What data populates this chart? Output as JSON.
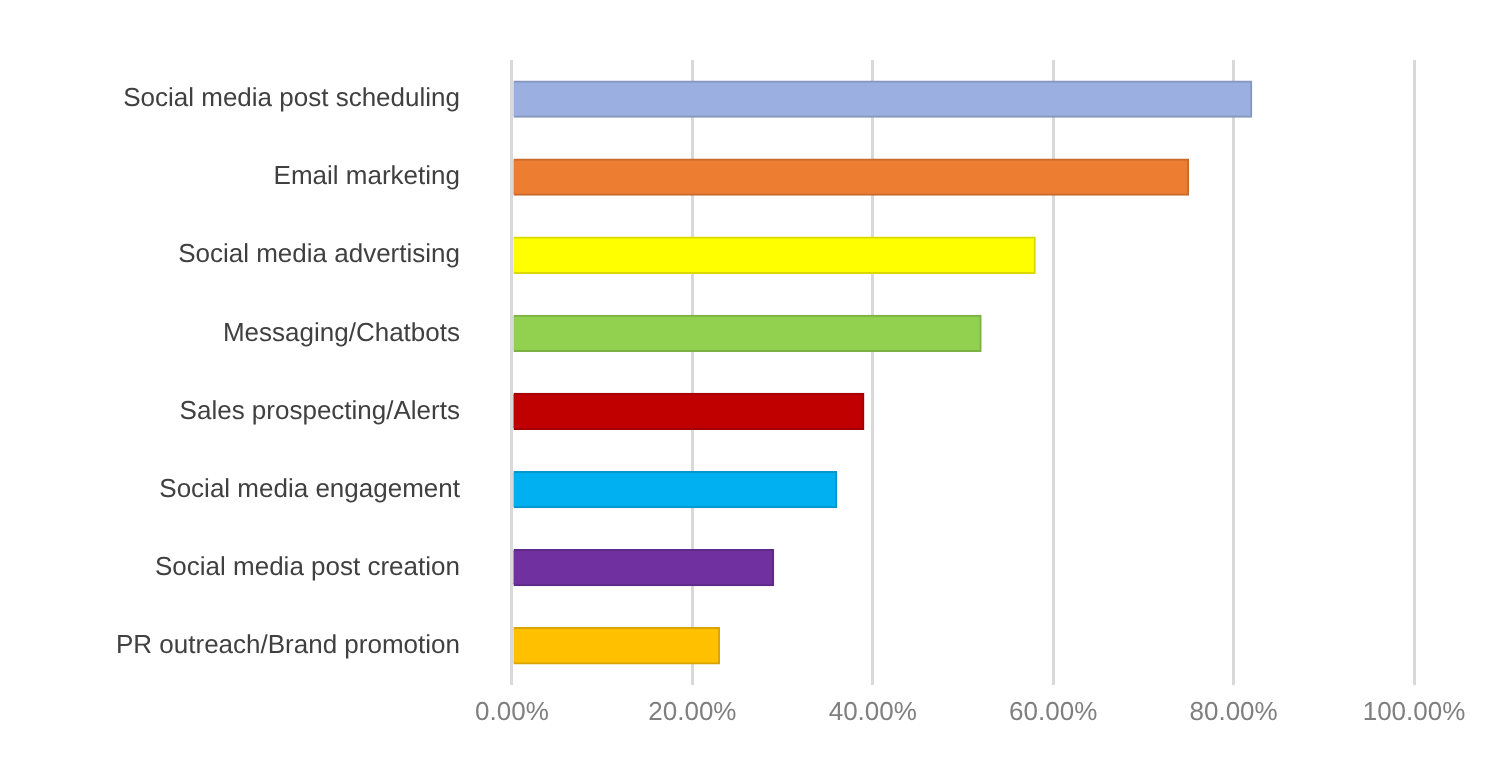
{
  "chart_data": {
    "type": "bar",
    "orientation": "horizontal",
    "categories": [
      "Social media post scheduling",
      "Email marketing",
      "Social media advertising",
      "Messaging/Chatbots",
      "Sales prospecting/Alerts",
      "Social media engagement",
      "Social media post creation",
      "PR outreach/Brand promotion"
    ],
    "values": [
      82,
      75,
      58,
      52,
      39,
      36,
      29,
      23
    ],
    "colors": [
      "#9bb0e0",
      "#ed7d31",
      "#ffff00",
      "#92d050",
      "#c00000",
      "#00b0f0",
      "#7030a0",
      "#ffc000"
    ],
    "xlim": [
      0,
      100
    ],
    "xticks": [
      {
        "value": 0,
        "label": "0.00%"
      },
      {
        "value": 20,
        "label": "20.00%"
      },
      {
        "value": 40,
        "label": "40.00%"
      },
      {
        "value": 60,
        "label": "60.00%"
      },
      {
        "value": 80,
        "label": "80.00%"
      },
      {
        "value": 100,
        "label": "100.00%"
      }
    ],
    "grid": "x",
    "legend": false
  }
}
